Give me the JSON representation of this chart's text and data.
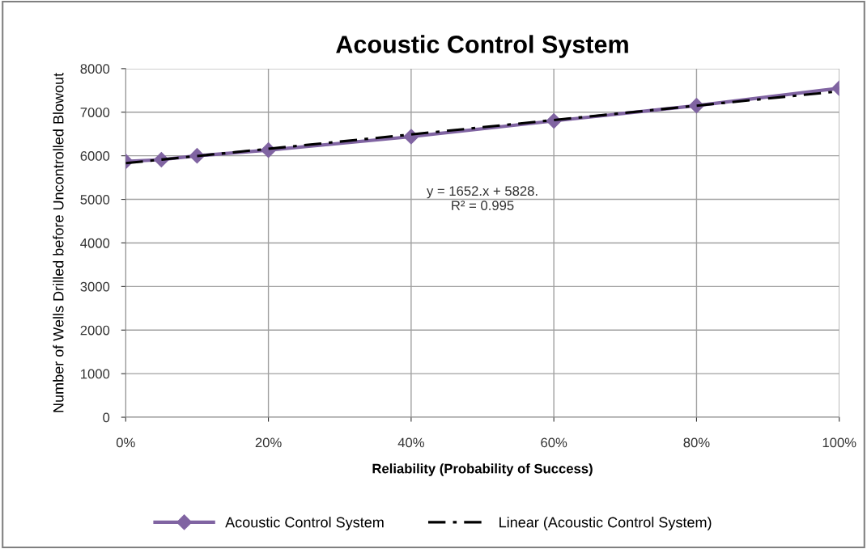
{
  "chart_data": {
    "type": "line",
    "title": "Acoustic Control System",
    "xlabel": "Reliability (Probability of Success)",
    "ylabel": "Number of Wells Drilled before Uncontrolled Blowout",
    "x": [
      0,
      0.05,
      0.1,
      0.2,
      0.4,
      0.6,
      0.8,
      1.0
    ],
    "series": [
      {
        "name": "Acoustic Control System",
        "color": "#8064a2",
        "values": [
          5870,
          5910,
          6000,
          6130,
          6440,
          6800,
          7150,
          7550
        ],
        "marker": "diamond",
        "line_style": "solid"
      },
      {
        "name": "Linear (Acoustic Control System)",
        "color": "#000000",
        "type": "line",
        "x": [
          0,
          1.0
        ],
        "values": [
          5830,
          7480
        ],
        "marker": "none",
        "line_style": "dashed"
      }
    ],
    "xlim": [
      0,
      1.0
    ],
    "xticks": [
      {
        "value": 0,
        "label": "0%"
      },
      {
        "value": 0.2,
        "label": "20%"
      },
      {
        "value": 0.4,
        "label": "40%"
      },
      {
        "value": 0.6,
        "label": "60%"
      },
      {
        "value": 0.8,
        "label": "80%"
      },
      {
        "value": 1.0,
        "label": "100%"
      }
    ],
    "ylim": [
      0,
      8000
    ],
    "yticks": [
      0,
      1000,
      2000,
      3000,
      4000,
      5000,
      6000,
      7000,
      8000
    ],
    "annotations": [
      "y = 1652.x + 5828.\nR² = 0.995"
    ],
    "grid": true,
    "legend": "bottom"
  }
}
